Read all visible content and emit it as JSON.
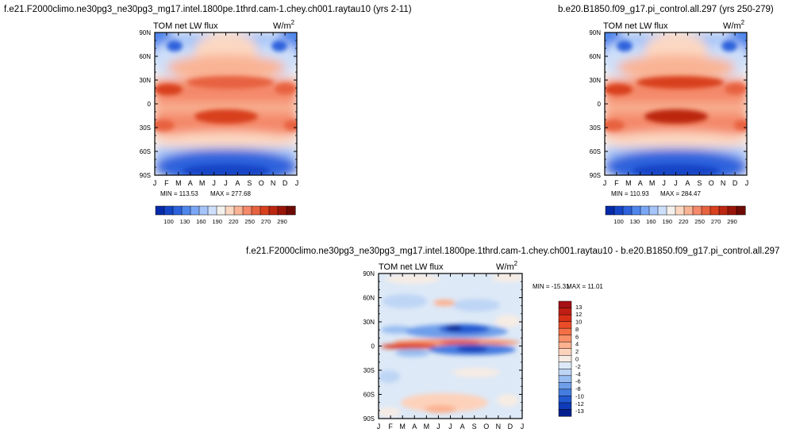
{
  "chart_data": [
    {
      "type": "heatmap",
      "title": "f.e21.F2000climo.ne30pg3_ne30pg3_mg17.intel.1800pe.1thrd.cam-1.chey.ch001.raytau10 (yrs 2-11)",
      "variable": "TOM net LW flux",
      "units": "W/m",
      "units_exp": "2",
      "xticks": [
        "J",
        "F",
        "M",
        "A",
        "M",
        "J",
        "J",
        "A",
        "S",
        "O",
        "N",
        "D",
        "J"
      ],
      "yticks": [
        "90N",
        "60N",
        "30N",
        "0",
        "30S",
        "60S",
        "90S"
      ],
      "min_label": "MIN = 113.53",
      "max_label": "MAX = 277.68",
      "min": 113.53,
      "max": 277.68,
      "colorbar_orientation": "horizontal",
      "colorbar_labels": [
        "100",
        "130",
        "160",
        "190",
        "220",
        "250",
        "270",
        "290"
      ],
      "colorbar_colors": [
        "#052aa8",
        "#1545c6",
        "#2d62dc",
        "#4f86ec",
        "#7aa7f5",
        "#a5c4f9",
        "#cddffa",
        "#f4f0ec",
        "#fcd8c2",
        "#f9b495",
        "#f4896b",
        "#e7623f",
        "#d8401e",
        "#bc2611",
        "#9a1509",
        "#6e0a06"
      ]
    },
    {
      "type": "heatmap",
      "title": "b.e20.B1850.f09_g17.pi_control.all.297 (yrs 250-279)",
      "variable": "TOM net LW flux",
      "units": "W/m",
      "units_exp": "2",
      "xticks": [
        "J",
        "F",
        "M",
        "A",
        "M",
        "J",
        "J",
        "A",
        "S",
        "O",
        "N",
        "D",
        "J"
      ],
      "yticks": [
        "90N",
        "60N",
        "30N",
        "0",
        "30S",
        "60S",
        "90S"
      ],
      "min_label": "MIN = 110.93",
      "max_label": "MAX = 284.47",
      "min": 110.93,
      "max": 284.47,
      "colorbar_orientation": "horizontal",
      "colorbar_labels": [
        "100",
        "130",
        "160",
        "190",
        "220",
        "250",
        "270",
        "290"
      ],
      "colorbar_colors": [
        "#052aa8",
        "#1545c6",
        "#2d62dc",
        "#4f86ec",
        "#7aa7f5",
        "#a5c4f9",
        "#cddffa",
        "#f4f0ec",
        "#fcd8c2",
        "#f9b495",
        "#f4896b",
        "#e7623f",
        "#d8401e",
        "#bc2611",
        "#9a1509",
        "#6e0a06"
      ]
    },
    {
      "type": "heatmap",
      "title": "f.e21.F2000climo.ne30pg3_ne30pg3_mg17.intel.1800pe.1thrd.cam-1.chey.ch001.raytau10 - b.e20.B1850.f09_g17.pi_control.all.297",
      "variable": "TOM net LW flux",
      "units": "W/m",
      "units_exp": "2",
      "xticks": [
        "J",
        "F",
        "M",
        "A",
        "M",
        "J",
        "J",
        "A",
        "S",
        "O",
        "N",
        "D",
        "J"
      ],
      "yticks": [
        "90N",
        "60N",
        "30N",
        "0",
        "30S",
        "60S",
        "90S"
      ],
      "min_label": "MIN = -15.31",
      "max_label": "MAX =  11.01",
      "min": -15.31,
      "max": 11.01,
      "colorbar_orientation": "vertical",
      "colorbar_labels": [
        "13",
        "12",
        "10",
        "8",
        "6",
        "4",
        "2",
        "0",
        "-2",
        "-4",
        "-6",
        "-8",
        "-10",
        "-12",
        "-13"
      ],
      "colorbar_colors": [
        "#a50f15",
        "#c01e14",
        "#d83018",
        "#ea4c28",
        "#f46f45",
        "#f99169",
        "#fcb18f",
        "#fdd2bb",
        "#f7ece4",
        "#dde9f7",
        "#bed5f5",
        "#98bdf1",
        "#6e9eea",
        "#457ce0",
        "#235ad2",
        "#0f3bb8",
        "#061f8e"
      ]
    }
  ]
}
